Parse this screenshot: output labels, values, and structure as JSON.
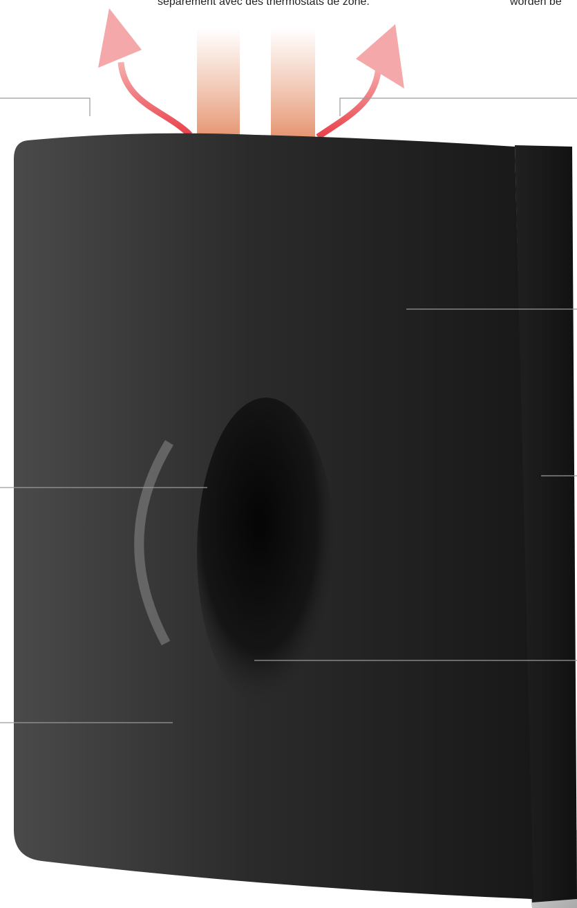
{
  "texts": {
    "center_caption": "séparément avec des thermostats de zone.",
    "right_caption": "worden be"
  }
}
